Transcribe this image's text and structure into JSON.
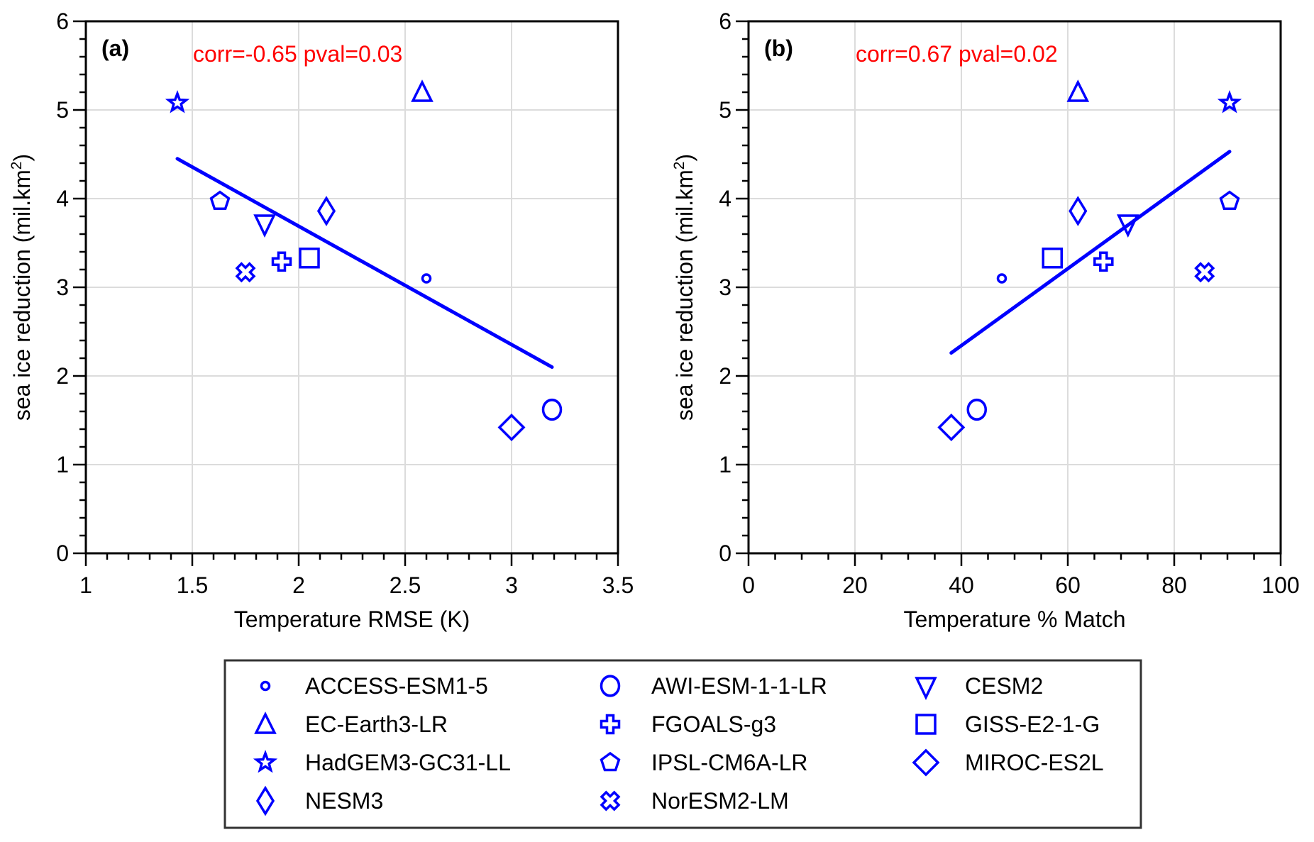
{
  "chart_data": [
    {
      "type": "scatter",
      "panel_label": "(a)",
      "annotation": "corr=-0.65  pval=0.03",
      "xlabel": "Temperature RMSE (K)",
      "ylabel": "sea ice reduction (mil.km",
      "ylabel_sup": "2",
      "ylabel_close": ")",
      "xlim": [
        1,
        3.5
      ],
      "ylim": [
        0,
        6
      ],
      "xticks": [
        1,
        1.5,
        2,
        2.5,
        3,
        3.5
      ],
      "xtick_labels": [
        "1",
        "1.5",
        "2",
        "2.5",
        "3",
        "3.5"
      ],
      "x_minor_step": 0.1,
      "yticks": [
        0,
        1,
        2,
        3,
        4,
        5,
        6
      ],
      "ytick_labels": [
        "0",
        "1",
        "2",
        "3",
        "4",
        "5",
        "6"
      ],
      "y_minor_step": 0.2,
      "grid": true,
      "points": [
        {
          "model": "ACCESS-ESM1-5",
          "x": 2.6,
          "y": 3.1
        },
        {
          "model": "AWI-ESM-1-1-LR",
          "x": 3.19,
          "y": 1.62
        },
        {
          "model": "CESM2",
          "x": 1.84,
          "y": 3.72
        },
        {
          "model": "EC-Earth3-LR",
          "x": 2.58,
          "y": 5.2
        },
        {
          "model": "FGOALS-g3",
          "x": 1.92,
          "y": 3.29
        },
        {
          "model": "GISS-E2-1-G",
          "x": 2.05,
          "y": 3.33
        },
        {
          "model": "HadGEM3-GC31-LL",
          "x": 1.43,
          "y": 5.08
        },
        {
          "model": "IPSL-CM6A-LR",
          "x": 1.63,
          "y": 3.97
        },
        {
          "model": "MIROC-ES2L",
          "x": 3.0,
          "y": 1.42
        },
        {
          "model": "NESM3",
          "x": 2.13,
          "y": 3.86
        },
        {
          "model": "NorESM2-LM",
          "x": 1.75,
          "y": 3.17
        }
      ],
      "fit_line": {
        "x": [
          1.43,
          3.19
        ],
        "y": [
          4.45,
          2.1
        ]
      }
    },
    {
      "type": "scatter",
      "panel_label": "(b)",
      "annotation": "corr=0.67  pval=0.02",
      "xlabel": "Temperature % Match",
      "ylabel": "sea ice reduction (mil.km",
      "ylabel_sup": "2",
      "ylabel_close": ")",
      "xlim": [
        0,
        100
      ],
      "ylim": [
        0,
        6
      ],
      "xticks": [
        0,
        20,
        40,
        60,
        80,
        100
      ],
      "xtick_labels": [
        "0",
        "20",
        "40",
        "60",
        "80",
        "100"
      ],
      "x_minor_step": 5,
      "yticks": [
        0,
        1,
        2,
        3,
        4,
        5,
        6
      ],
      "ytick_labels": [
        "0",
        "1",
        "2",
        "3",
        "4",
        "5",
        "6"
      ],
      "y_minor_step": 0.2,
      "grid": true,
      "points": [
        {
          "model": "ACCESS-ESM1-5",
          "x": 47.6,
          "y": 3.1
        },
        {
          "model": "AWI-ESM-1-1-LR",
          "x": 42.9,
          "y": 1.62
        },
        {
          "model": "CESM2",
          "x": 71.3,
          "y": 3.72
        },
        {
          "model": "EC-Earth3-LR",
          "x": 61.9,
          "y": 5.2
        },
        {
          "model": "FGOALS-g3",
          "x": 66.7,
          "y": 3.29
        },
        {
          "model": "GISS-E2-1-G",
          "x": 57.1,
          "y": 3.33
        },
        {
          "model": "HadGEM3-GC31-LL",
          "x": 90.4,
          "y": 5.08
        },
        {
          "model": "IPSL-CM6A-LR",
          "x": 90.4,
          "y": 3.97
        },
        {
          "model": "MIROC-ES2L",
          "x": 38.1,
          "y": 1.42
        },
        {
          "model": "NESM3",
          "x": 61.9,
          "y": 3.86
        },
        {
          "model": "NorESM2-LM",
          "x": 85.7,
          "y": 3.17
        }
      ],
      "fit_line": {
        "x": [
          38.1,
          90.4
        ],
        "y": [
          2.26,
          4.53
        ]
      }
    }
  ],
  "legend": {
    "placement": "bottom",
    "columns": 3,
    "entries": [
      {
        "model": "ACCESS-ESM1-5",
        "marker": "small-circle"
      },
      {
        "model": "EC-Earth3-LR",
        "marker": "triangle-up"
      },
      {
        "model": "HadGEM3-GC31-LL",
        "marker": "star"
      },
      {
        "model": "NESM3",
        "marker": "thin-diamond"
      },
      {
        "model": "AWI-ESM-1-1-LR",
        "marker": "circle"
      },
      {
        "model": "FGOALS-g3",
        "marker": "plus"
      },
      {
        "model": "IPSL-CM6A-LR",
        "marker": "pentagon"
      },
      {
        "model": "NorESM2-LM",
        "marker": "x-cross"
      },
      {
        "model": "CESM2",
        "marker": "triangle-down"
      },
      {
        "model": "GISS-E2-1-G",
        "marker": "square"
      },
      {
        "model": "MIROC-ES2L",
        "marker": "diamond"
      }
    ]
  },
  "colors": {
    "marker": "#0000ff",
    "fit_line": "#0000ff",
    "annotation": "#ff0000",
    "axis": "#000000",
    "grid": "#dcdcdc"
  }
}
